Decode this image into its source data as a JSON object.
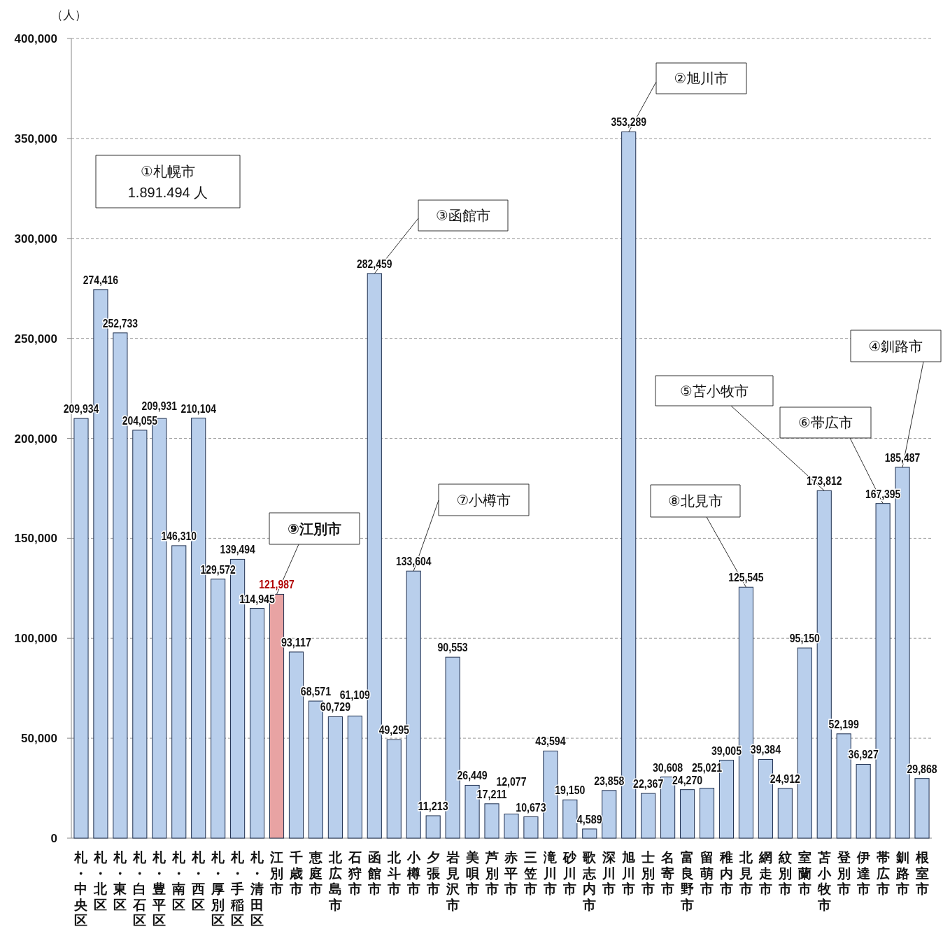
{
  "chart_data": {
    "type": "bar",
    "ylabel": "（人）",
    "categories": [
      "札・中央区",
      "札・北区",
      "札・東区",
      "札・白石区",
      "札・豊平区",
      "札・南区",
      "札・西区",
      "札・厚別区",
      "札・手稲区",
      "札・清田区",
      "江別市",
      "千歳市",
      "恵庭市",
      "北広島市",
      "石狩市",
      "函館市",
      "北斗市",
      "小樽市",
      "夕張市",
      "岩見沢市",
      "美唄市",
      "芦別市",
      "赤平市",
      "三笠市",
      "滝川市",
      "砂川市",
      "歌志内市",
      "深川市",
      "旭川市",
      "士別市",
      "名寄市",
      "富良野市",
      "留萌市",
      "稚内市",
      "北見市",
      "網走市",
      "紋別市",
      "室蘭市",
      "苫小牧市",
      "登別市",
      "伊達市",
      "帯広市",
      "釧路市",
      "根室市"
    ],
    "values": [
      209934,
      274416,
      252733,
      204055,
      209931,
      146310,
      210104,
      129572,
      139494,
      114945,
      121987,
      93117,
      68571,
      60729,
      61109,
      282459,
      49295,
      133604,
      11213,
      90553,
      26449,
      17211,
      12077,
      10673,
      43594,
      19150,
      4589,
      23858,
      353289,
      22367,
      30608,
      24270,
      25021,
      39005,
      125545,
      39384,
      24912,
      95150,
      173812,
      52199,
      36927,
      167395,
      185487,
      29868
    ],
    "colors": [
      "#b9cfec",
      "#b9cfec",
      "#b9cfec",
      "#b9cfec",
      "#b9cfec",
      "#b9cfec",
      "#b9cfec",
      "#b9cfec",
      "#b9cfec",
      "#b9cfec",
      "#e8a3a3",
      "#b9cfec",
      "#b9cfec",
      "#b9cfec",
      "#b9cfec",
      "#b9cfec",
      "#b9cfec",
      "#b9cfec",
      "#b9cfec",
      "#b9cfec",
      "#b9cfec",
      "#b9cfec",
      "#b9cfec",
      "#b9cfec",
      "#b9cfec",
      "#b9cfec",
      "#b9cfec",
      "#b9cfec",
      "#b9cfec",
      "#b9cfec",
      "#b9cfec",
      "#b9cfec",
      "#b9cfec",
      "#b9cfec",
      "#b9cfec",
      "#b9cfec",
      "#b9cfec",
      "#b9cfec",
      "#b9cfec",
      "#b9cfec",
      "#b9cfec",
      "#b9cfec",
      "#b9cfec",
      "#b9cfec"
    ],
    "value_labels": [
      "209,934",
      "274,416",
      "252,733",
      "204,055",
      "209,931",
      "146,310",
      "210,104",
      "129,572",
      "139,494",
      "114,945",
      "121,987",
      "93,117",
      "68,571",
      "60,729",
      "61,109",
      "282,459",
      "49,295",
      "133,604",
      "11,213",
      "90,553",
      "26,449",
      "17,211",
      "12,077",
      "10,673",
      "43,594",
      "19,150",
      "4,589",
      "23,858",
      "353,289",
      "22,367",
      "30,608",
      "24,270",
      "25,021",
      "39,005",
      "125,545",
      "39,384",
      "24,912",
      "95,150",
      "173,812",
      "52,199",
      "36,927",
      "167,395",
      "185,487",
      "29,868"
    ],
    "ylim": [
      0,
      400000
    ],
    "yticks": [
      {
        "value": 0,
        "label": "0"
      },
      {
        "value": 50000,
        "label": "50,000"
      },
      {
        "value": 100000,
        "label": "100,000"
      },
      {
        "value": 150000,
        "label": "150,000"
      },
      {
        "value": 200000,
        "label": "200,000"
      },
      {
        "value": 250000,
        "label": "250,000"
      },
      {
        "value": 300000,
        "label": "300,000"
      },
      {
        "value": 350000,
        "label": "350,000"
      },
      {
        "value": 400000,
        "label": "400,000"
      }
    ],
    "grid": "y",
    "annotations": [
      "①札幌市\n1.891.494 人",
      {
        "text": "②旭川市",
        "x": "旭川市",
        "y": 353289
      },
      {
        "text": "③函館市",
        "x": "函館市",
        "y": 282459
      },
      {
        "text": "④釧路市",
        "x": "釧路市",
        "y": 185487
      },
      {
        "text": "⑤苫小牧市",
        "x": "苫小牧市",
        "y": 173812
      },
      {
        "text": "⑥帯広市",
        "x": "帯広市",
        "y": 167395
      },
      {
        "text": "⑦小樽市",
        "x": "小樽市",
        "y": 133604
      },
      {
        "text": "⑧北見市",
        "x": "北見市",
        "y": 125545
      },
      {
        "text": "⑨江別市",
        "x": "江別市",
        "y": 121987
      }
    ]
  }
}
